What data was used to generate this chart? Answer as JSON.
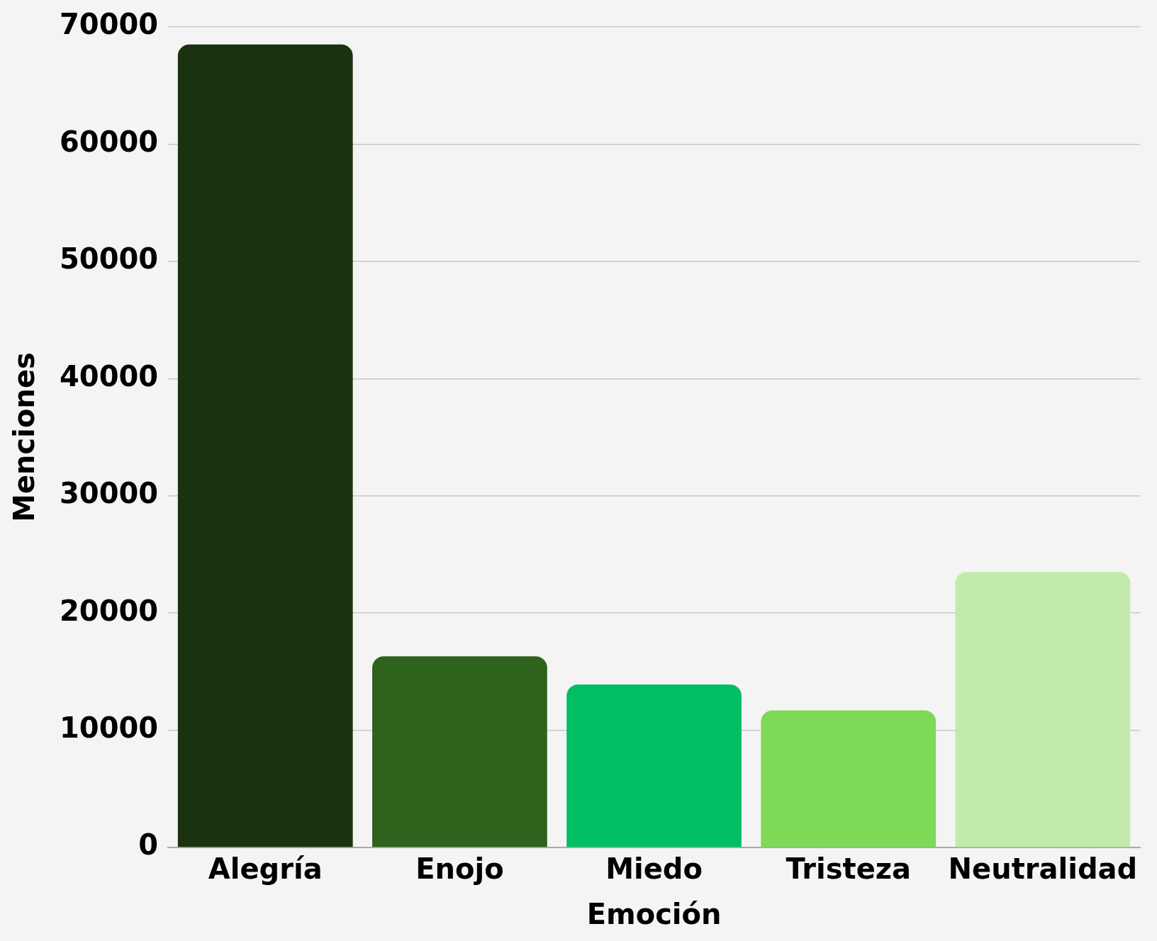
{
  "chart_data": {
    "type": "bar",
    "xlabel": "Emoción",
    "ylabel": "Menciones",
    "categories": [
      "Alegría",
      "Enojo",
      "Miedo",
      "Tristeza",
      "Neutralidad"
    ],
    "values": [
      68500,
      16300,
      13900,
      11700,
      23500
    ],
    "colors": [
      "#1a3210",
      "#2f621c",
      "#00bf63",
      "#7ed957",
      "#c1eaab"
    ],
    "ylim": [
      0,
      70000
    ],
    "yticks": [
      0,
      10000,
      20000,
      30000,
      40000,
      50000,
      60000,
      70000
    ],
    "grid": "y",
    "legend": false
  }
}
